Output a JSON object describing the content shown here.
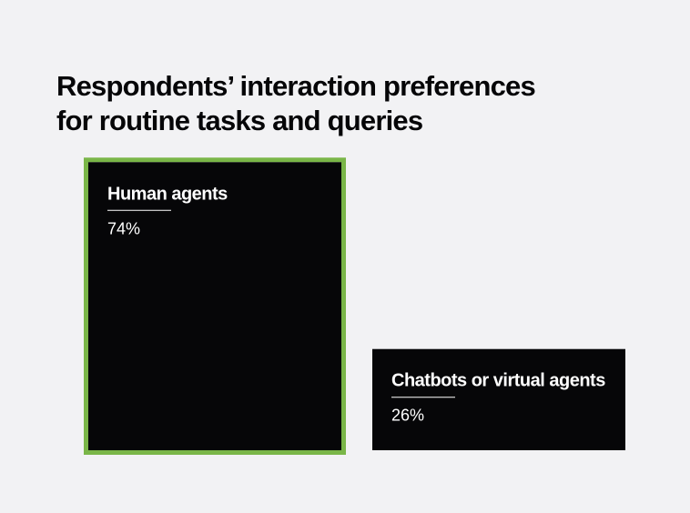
{
  "chart_data": {
    "type": "bar",
    "title": "Respondents’ interaction preferences for routine tasks and queries",
    "categories": [
      "Human agents",
      "Chatbots or virtual agents"
    ],
    "values": [
      74,
      26
    ],
    "value_labels": [
      "74%",
      "26%"
    ],
    "color": "#060608",
    "outline": [
      "#7ab648",
      null
    ]
  }
}
